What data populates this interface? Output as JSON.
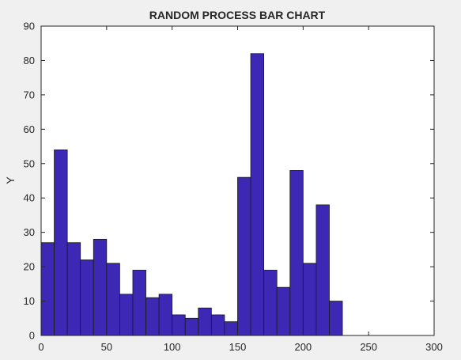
{
  "chart_data": {
    "type": "bar",
    "title": "RANDOM PROCESS BAR CHART",
    "xlabel": "",
    "ylabel": "Y",
    "xlim": [
      0,
      300
    ],
    "ylim": [
      0,
      90
    ],
    "xticks": [
      0,
      50,
      100,
      150,
      200,
      250,
      300
    ],
    "yticks": [
      0,
      10,
      20,
      30,
      40,
      50,
      60,
      70,
      80,
      90
    ],
    "bar_width": 10,
    "x": [
      5,
      15,
      25,
      35,
      45,
      55,
      65,
      75,
      85,
      95,
      105,
      115,
      125,
      135,
      145,
      155,
      165,
      175,
      185,
      195,
      205,
      215,
      225,
      235,
      245
    ],
    "values": [
      27,
      54,
      27,
      22,
      28,
      21,
      12,
      19,
      11,
      12,
      6,
      5,
      8,
      6,
      4,
      46,
      82,
      19,
      14,
      48,
      21,
      38,
      10,
      0,
      0
    ],
    "grid": false,
    "colors": {
      "bar_fill": "#3c28b4",
      "bar_edge": "#1a1a1a",
      "axes_bg": "#ffffff",
      "axis": "#262626"
    }
  }
}
